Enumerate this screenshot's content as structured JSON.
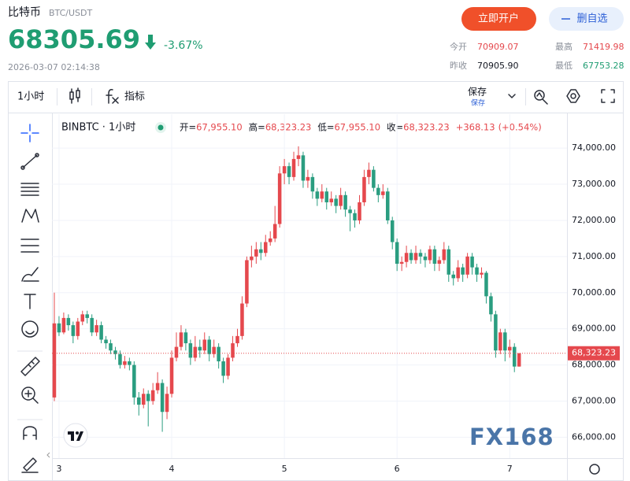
{
  "header": {
    "name": "比特币",
    "pair": "BTC/USDT",
    "price": "68305.69",
    "change": "-3.67%",
    "time": "2026-03-07 02:14:38",
    "open_account": "立即开户",
    "remove_watch": "删自选",
    "stats": [
      {
        "label": "今开",
        "value": "70909.07"
      },
      {
        "label": "最高",
        "value": "71419.98"
      },
      {
        "label": "昨收",
        "value": "70905.90"
      },
      {
        "label": "最低",
        "value": "67753.28"
      }
    ]
  },
  "toolbar": {
    "interval": "1小时",
    "indicators": "指标",
    "save": "保存",
    "save_sub": "保存"
  },
  "watermark": "FX168",
  "chart_data": {
    "type": "candlestick",
    "legend_title": "BINBTC · 1小时",
    "legend_items": [
      {
        "label": "开=",
        "value": "67,955.10"
      },
      {
        "label": "高=",
        "value": "68,323.23"
      },
      {
        "label": "低=",
        "value": "67,955.10"
      },
      {
        "label": "收=",
        "value": "68,323.23"
      },
      {
        "label": "+368.13",
        "value": "(+0.54%)"
      }
    ],
    "up_color": "#e5484d",
    "down_color": "#2a9d80",
    "candles": [
      [
        67100,
        70000,
        67000,
        69150
      ],
      [
        69150,
        69350,
        68800,
        68900
      ],
      [
        68900,
        69450,
        68850,
        69300
      ],
      [
        69300,
        69400,
        68950,
        69100
      ],
      [
        69100,
        69200,
        68600,
        68800
      ],
      [
        68800,
        69300,
        68700,
        69200
      ],
      [
        69200,
        69500,
        69100,
        69400
      ],
      [
        69400,
        69500,
        69150,
        69300
      ],
      [
        69300,
        69400,
        68800,
        68900
      ],
      [
        68900,
        69250,
        68800,
        69100
      ],
      [
        69100,
        69200,
        68600,
        68700
      ],
      [
        68700,
        68800,
        68450,
        68600
      ],
      [
        68600,
        68700,
        68300,
        68400
      ],
      [
        68400,
        68500,
        68150,
        68300
      ],
      [
        68300,
        68400,
        67900,
        68000
      ],
      [
        68000,
        68250,
        67900,
        68100
      ],
      [
        68100,
        68200,
        67850,
        68000
      ],
      [
        68000,
        68100,
        66900,
        67100
      ],
      [
        67100,
        67250,
        66600,
        66900
      ],
      [
        66900,
        67350,
        66800,
        67200
      ],
      [
        67200,
        67300,
        66300,
        67000
      ],
      [
        67000,
        67500,
        66900,
        67300
      ],
      [
        67300,
        67800,
        67200,
        67500
      ],
      [
        67500,
        67600,
        66150,
        66700
      ],
      [
        66700,
        67400,
        66500,
        67200
      ],
      [
        67200,
        68400,
        67100,
        68200
      ],
      [
        68200,
        68900,
        68100,
        68500
      ],
      [
        68500,
        69100,
        68400,
        68900
      ],
      [
        68900,
        69000,
        68400,
        68600
      ],
      [
        68600,
        68700,
        68000,
        68200
      ],
      [
        68200,
        68800,
        68100,
        68500
      ],
      [
        68500,
        68700,
        68200,
        68400
      ],
      [
        68400,
        68900,
        68300,
        68700
      ],
      [
        68700,
        68800,
        68100,
        68300
      ],
      [
        68300,
        68700,
        68200,
        68500
      ],
      [
        68500,
        68600,
        67900,
        68100
      ],
      [
        68100,
        68200,
        67500,
        67700
      ],
      [
        67700,
        68300,
        67600,
        68200
      ],
      [
        68200,
        68800,
        68100,
        68600
      ],
      [
        68600,
        69000,
        68500,
        68800
      ],
      [
        68800,
        69900,
        68700,
        69700
      ],
      [
        69700,
        71000,
        69600,
        70900
      ],
      [
        70900,
        71300,
        70700,
        71000
      ],
      [
        71000,
        71400,
        70800,
        71200
      ],
      [
        71200,
        71400,
        70900,
        71100
      ],
      [
        71100,
        71600,
        71000,
        71400
      ],
      [
        71400,
        71700,
        71300,
        71500
      ],
      [
        71500,
        72400,
        71400,
        71900
      ],
      [
        71900,
        73500,
        71800,
        73300
      ],
      [
        73300,
        73700,
        73000,
        73500
      ],
      [
        73500,
        73600,
        73000,
        73200
      ],
      [
        73200,
        73900,
        73100,
        73700
      ],
      [
        73700,
        74050,
        73500,
        73800
      ],
      [
        73800,
        73900,
        72900,
        73100
      ],
      [
        73100,
        73400,
        72900,
        73200
      ],
      [
        73200,
        73300,
        72600,
        72800
      ],
      [
        72800,
        72900,
        72400,
        72600
      ],
      [
        72600,
        73000,
        72500,
        72800
      ],
      [
        72800,
        72900,
        72300,
        72500
      ],
      [
        72500,
        72800,
        72400,
        72600
      ],
      [
        72600,
        72700,
        72200,
        72400
      ],
      [
        72400,
        72900,
        72300,
        72700
      ],
      [
        72700,
        72800,
        72100,
        72300
      ],
      [
        72300,
        72400,
        71700,
        72200
      ],
      [
        72200,
        72300,
        71800,
        72000
      ],
      [
        72000,
        72700,
        71900,
        72500
      ],
      [
        72500,
        73400,
        72400,
        73200
      ],
      [
        73200,
        73600,
        73000,
        73400
      ],
      [
        73400,
        73500,
        72800,
        72900
      ],
      [
        72900,
        73000,
        72500,
        72700
      ],
      [
        72700,
        73000,
        72600,
        72800
      ],
      [
        72800,
        72900,
        71900,
        72000
      ],
      [
        72000,
        72100,
        71200,
        71400
      ],
      [
        71400,
        71500,
        70600,
        70800
      ],
      [
        70800,
        71000,
        70600,
        70850
      ],
      [
        70850,
        71300,
        70700,
        71100
      ],
      [
        71100,
        71200,
        70800,
        70900
      ],
      [
        70900,
        71300,
        70800,
        71100
      ],
      [
        71100,
        71200,
        70800,
        71000
      ],
      [
        71000,
        71100,
        70700,
        70900
      ],
      [
        70900,
        71300,
        70800,
        71200
      ],
      [
        71200,
        71300,
        70600,
        70800
      ],
      [
        70800,
        71000,
        70600,
        70900
      ],
      [
        70900,
        71400,
        70800,
        71200
      ],
      [
        71200,
        71300,
        70300,
        70500
      ],
      [
        70500,
        70600,
        70200,
        70400
      ],
      [
        70400,
        70900,
        70300,
        70700
      ],
      [
        70700,
        70800,
        70300,
        70500
      ],
      [
        70500,
        71100,
        70400,
        71000
      ],
      [
        71000,
        71100,
        70500,
        70700
      ],
      [
        70700,
        70800,
        70300,
        70500
      ],
      [
        70500,
        70700,
        70400,
        70550
      ],
      [
        70550,
        70600,
        69700,
        69900
      ],
      [
        69900,
        70000,
        69200,
        69400
      ],
      [
        69400,
        69500,
        68200,
        68400
      ],
      [
        68400,
        69000,
        68300,
        68900
      ],
      [
        68900,
        69000,
        68100,
        68400
      ],
      [
        68400,
        68700,
        68200,
        68500
      ],
      [
        68500,
        68600,
        67800,
        67955.1
      ],
      [
        67955.1,
        68323.23,
        67955.1,
        68323.23
      ]
    ],
    "xlim": [
      -0.5,
      109.2
    ],
    "xticks": [
      {
        "value": 1,
        "label": "3"
      },
      {
        "value": 25,
        "label": "4"
      },
      {
        "value": 49,
        "label": "5"
      },
      {
        "value": 73,
        "label": "6"
      },
      {
        "value": 97,
        "label": "7"
      }
    ],
    "ylim": [
      65420,
      74940
    ],
    "yticks": [
      {
        "value": 66000,
        "label": "66,000.00"
      },
      {
        "value": 67000,
        "label": "67,000.00"
      },
      {
        "value": 68000,
        "label": "68,000.00"
      },
      {
        "value": 69000,
        "label": "69,000.00"
      },
      {
        "value": 70000,
        "label": "70,000.00"
      },
      {
        "value": 71000,
        "label": "71,000.00"
      },
      {
        "value": 72000,
        "label": "72,000.00"
      },
      {
        "value": 73000,
        "label": "73,000.00"
      },
      {
        "value": 74000,
        "label": "74,000.00"
      }
    ],
    "last_price": {
      "value": 68323.23,
      "label": "68,323.23"
    },
    "grid": true
  }
}
